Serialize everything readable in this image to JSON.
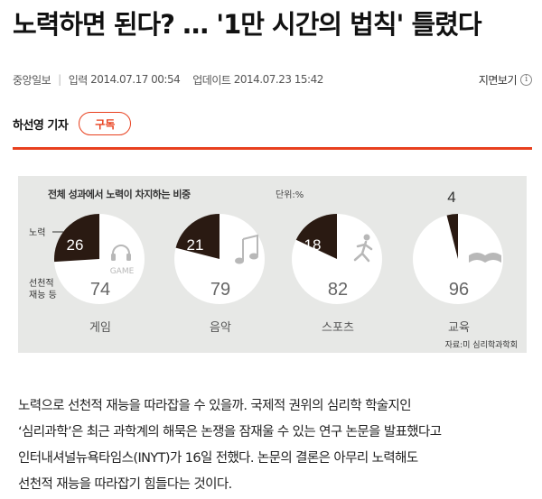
{
  "headline": "노력하면 된다? … '1만 시간의 법칙' 틀렸다",
  "meta": {
    "source": "중앙일보",
    "input_label": "입력",
    "input_date": "2014.07.17 00:54",
    "update_label": "업데이트",
    "update_date": "2014.07.23 15:42",
    "print_label": "지면보기",
    "info_glyph": "i"
  },
  "byline": {
    "reporter": "하선영 기자",
    "subscribe_label": "구독"
  },
  "chart_data": {
    "type": "pie",
    "title": "전체 성과에서 노력이 차지하는 비중",
    "unit": "단위:%",
    "legend_effort": "노력",
    "legend_talent_lines": [
      "선천적",
      "재능 등"
    ],
    "source": "자료:미 심리학과학회",
    "charts": [
      {
        "category": "게임",
        "effort": 26,
        "talent": 74,
        "icon_text": "GAME",
        "icon_name": "headphones-icon"
      },
      {
        "category": "음악",
        "effort": 21,
        "talent": 79,
        "icon_name": "music-note-icon"
      },
      {
        "category": "스포츠",
        "effort": 18,
        "talent": 82,
        "icon_name": "runner-icon"
      },
      {
        "category": "교육",
        "effort": 4,
        "talent": 96,
        "icon_name": "book-icon"
      }
    ],
    "colors": {
      "effort": "#2a1a12",
      "talent": "#ffffff",
      "background": "#e7e8e6",
      "category_text": "#555555",
      "talent_number": "#666666"
    }
  },
  "body": [
    "노력으로 선천적 재능을 따라잡을 수 있을까. 국제적 권위의 심리학 학술지인",
    "‘심리과학’은 최근 과학계의 해묵은 논쟁을 잠재울 수 있는 연구 논문을 발표했다고",
    "인터내셔널뉴욕타임스(INYT)가 16일 전했다. 논문의 결론은 아무리 노력해도",
    "선천적 재능을 따라잡기 힘들다는 것이다."
  ]
}
